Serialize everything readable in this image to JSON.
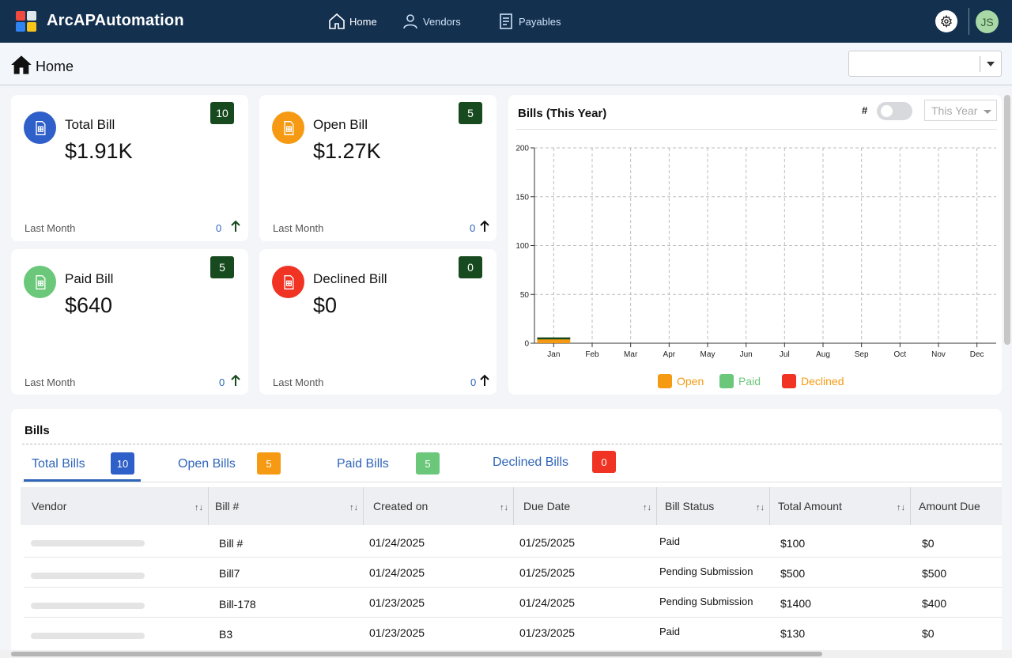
{
  "app": {
    "name": "ArcAPAutomation"
  },
  "nav": {
    "items": [
      {
        "label": "Home",
        "icon": "home-icon"
      },
      {
        "label": "Vendors",
        "icon": "user-icon"
      },
      {
        "label": "Payables",
        "icon": "document-icon"
      }
    ],
    "avatar_initials": "JS"
  },
  "page": {
    "title": "Home",
    "select_value": ""
  },
  "cards": [
    {
      "title": "Total Bill",
      "value": "$1.91K",
      "badge": "10",
      "footer": "Last Month",
      "delta": "0",
      "color": "#2f5fc8"
    },
    {
      "title": "Open Bill",
      "value": "$1.27K",
      "badge": "5",
      "footer": "Last Month",
      "delta": "0",
      "color": "#f59a12"
    },
    {
      "title": "Paid Bill",
      "value": "$640",
      "badge": "5",
      "footer": "Last Month",
      "delta": "0",
      "color": "#6bc77a"
    },
    {
      "title": "Declined Bill",
      "value": "$0",
      "badge": "0",
      "footer": "Last Month",
      "delta": "0",
      "color": "#f03323"
    }
  ],
  "chart_panel": {
    "title": "Bills (This Year)",
    "toggle_label": "#",
    "toggle_on": false,
    "period": "This Year"
  },
  "chart_data": {
    "type": "bar",
    "title": "Bills (This Year)",
    "categories": [
      "Jan",
      "Feb",
      "Mar",
      "Apr",
      "May",
      "Jun",
      "Jul",
      "Aug",
      "Sep",
      "Oct",
      "Nov",
      "Dec"
    ],
    "series": [
      {
        "name": "Open",
        "color": "#f59a12",
        "values": [
          5,
          0,
          0,
          0,
          0,
          0,
          0,
          0,
          0,
          0,
          0,
          0
        ]
      },
      {
        "name": "Paid",
        "color": "#6bc77a",
        "values": [
          0,
          0,
          0,
          0,
          0,
          0,
          0,
          0,
          0,
          0,
          0,
          0
        ]
      },
      {
        "name": "Declined",
        "color": "#f03323",
        "values": [
          0,
          0,
          0,
          0,
          0,
          0,
          0,
          0,
          0,
          0,
          0,
          0
        ]
      }
    ],
    "yticks": [
      0,
      50,
      100,
      150,
      200
    ],
    "ylim": [
      0,
      200
    ],
    "grid": true,
    "legend": "bottom"
  },
  "bills": {
    "title": "Bills",
    "tabs": [
      {
        "label": "Total Bills",
        "count": "10",
        "color": "#2f5fc8"
      },
      {
        "label": "Open Bills",
        "count": "5",
        "color": "#f59a12"
      },
      {
        "label": "Paid Bills",
        "count": "5",
        "color": "#6bc77a"
      },
      {
        "label": "Declined Bills",
        "count": "0",
        "color": "#f03323"
      }
    ],
    "columns": [
      "Vendor",
      "Bill #",
      "Created on",
      "Due Date",
      "Bill Status",
      "Total Amount",
      "Amount Due"
    ],
    "rows": [
      {
        "bill": "Bill #",
        "created": "01/24/2025",
        "due": "01/25/2025",
        "status": "Paid",
        "total": "$100",
        "amount_due": "$0"
      },
      {
        "bill": "Bill7",
        "created": "01/24/2025",
        "due": "01/25/2025",
        "status": "Pending Submission",
        "total": "$500",
        "amount_due": "$500"
      },
      {
        "bill": "Bill-178",
        "created": "01/23/2025",
        "due": "01/24/2025",
        "status": "Pending Submission",
        "total": "$1400",
        "amount_due": "$400"
      },
      {
        "bill": "B3",
        "created": "01/23/2025",
        "due": "01/23/2025",
        "status": "Paid",
        "total": "$130",
        "amount_due": "$0"
      }
    ]
  }
}
